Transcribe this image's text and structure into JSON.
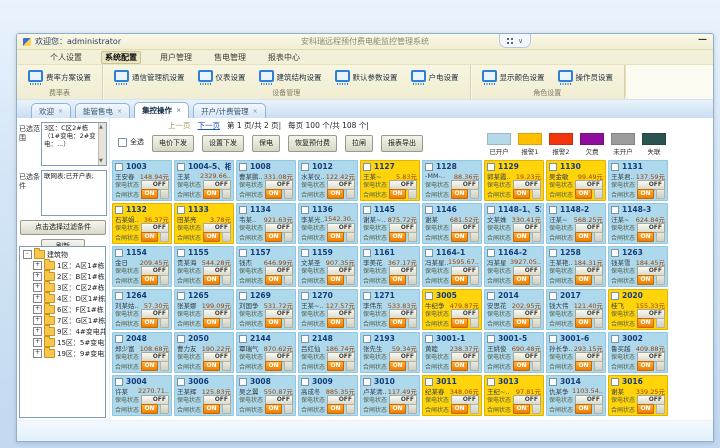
{
  "window": {
    "welcome": "欢迎您：administrator",
    "title": "安科瑞远程预付费电能监控管理系统",
    "minimize_glyph": "—",
    "widget_chevron": "∨"
  },
  "menu": {
    "items": [
      {
        "label": "个人设置",
        "active": false
      },
      {
        "label": "系统配置",
        "active": true
      },
      {
        "label": "用户管理",
        "active": false
      },
      {
        "label": "售电管理",
        "active": false
      },
      {
        "label": "报表中心",
        "active": false
      }
    ]
  },
  "ribbon": {
    "groups": [
      {
        "caption": "费率表",
        "buttons": [
          "费率方案设置"
        ]
      },
      {
        "caption": "设备管理",
        "buttons": [
          "通信管理机设置",
          "仪表设置",
          "建筑结构设置",
          "默认参数设置",
          "户电设置"
        ]
      },
      {
        "caption": "角色设置",
        "buttons": [
          "显示颜色设置",
          "操作员设置"
        ]
      }
    ]
  },
  "tabs": {
    "close_glyph": "×",
    "items": [
      {
        "label": "欢迎",
        "active": false
      },
      {
        "label": "能管售电",
        "active": false
      },
      {
        "label": "集控操作",
        "active": true
      },
      {
        "label": "开户/计费管理",
        "active": false
      }
    ]
  },
  "sidebar": {
    "range_label": "已选范围",
    "range_value": "3区：C区2#栋（1#变电：2#变电：...）",
    "cond_label": "已选条件",
    "cond_value": "联网表;已开户表;",
    "filter_button": "点击选择过滤条件",
    "refresh_button": "刷新",
    "tree": {
      "root": "建筑物",
      "root_glyph": "-",
      "expand_glyph": "+",
      "items": [
        "1区：A区1#栋",
        "2区：B区1#栋(B区1#…",
        "3区：C区2#栋（1#变…",
        "4区：D区1#栋（D区1…",
        "6区：F区1#栋（F区1#…",
        "7区：G区1#栋",
        "9区：4#变电井（4#变…",
        "15区：5#变电站（3#变…",
        "19区：9#变电站（2#…"
      ]
    }
  },
  "toolbar": {
    "select_all": "全选",
    "pager": {
      "prev": "上一页",
      "next": "下一页",
      "page_info": "第 1 页/共 2 页|",
      "count_info": "每页 100 个/共 108 个|"
    },
    "buttons": [
      "电价下发",
      "设置下发",
      "保电",
      "恢复预付费",
      "拉闸",
      "报表导出"
    ],
    "legend": [
      {
        "label": "已开户",
        "color": "#b5d9e8"
      },
      {
        "label": "报警1",
        "color": "#ffc000"
      },
      {
        "label": "报警2",
        "color": "#f1350c"
      },
      {
        "label": "欠费",
        "color": "#8f0d9c"
      },
      {
        "label": "未开户",
        "color": "#9b9b9b"
      },
      {
        "label": "失联",
        "color": "#2b5450"
      }
    ]
  },
  "grid": {
    "status1_label": "保电状态",
    "status1_value": "OFF",
    "status2_label": "合闸状态",
    "status2_value": "ON",
    "cards": [
      {
        "room": "1003",
        "name": "王安春",
        "bal": "148.94元",
        "state": "ok"
      },
      {
        "room": "1004-5、相一",
        "name": "王某",
        "bal": "2329.66..",
        "state": "ok"
      },
      {
        "room": "1008",
        "name": "曹某鹏..",
        "bal": "331.08元",
        "state": "ok"
      },
      {
        "room": "1012",
        "name": "水某仪..",
        "bal": "122.42元",
        "state": "ok"
      },
      {
        "room": "1127",
        "name": "王某~",
        "bal": "5.83元",
        "state": "warn"
      },
      {
        "room": "1128",
        "name": "-MM-..",
        "bal": "88.36元",
        "state": "ok"
      },
      {
        "room": "1129",
        "name": "郭某霞..",
        "bal": "19.23元",
        "state": "warn"
      },
      {
        "room": "1130",
        "name": "吴金敏",
        "bal": "99.49元",
        "state": "warn"
      },
      {
        "room": "1131",
        "name": "王某君..",
        "bal": "137.59元",
        "state": "ok"
      },
      {
        "room": "1132",
        "name": "石某娟..",
        "bal": "36.37元",
        "state": "warn"
      },
      {
        "room": "1133",
        "name": "田某亮",
        "bal": "3.78元",
        "state": "warn"
      },
      {
        "room": "1134",
        "name": "韦某..",
        "bal": "921.63元",
        "state": "ok"
      },
      {
        "room": "1136",
        "name": "李某光..",
        "bal": "1542.30..",
        "state": "ok"
      },
      {
        "room": "1145",
        "name": "谢某~..",
        "bal": "875.72元",
        "state": "ok"
      },
      {
        "room": "1146",
        "name": "谢某",
        "bal": "681.52元",
        "state": "ok"
      },
      {
        "room": "1148-1、522",
        "name": "文某姝",
        "bal": "330.41元",
        "state": "ok"
      },
      {
        "room": "1148-2",
        "name": "汪某~",
        "bal": "568.25元",
        "state": "ok"
      },
      {
        "room": "1148-3",
        "name": "汪某~",
        "bal": "624.84元",
        "state": "ok"
      },
      {
        "room": "1154",
        "name": "金日",
        "bal": "209.45元",
        "state": "ok"
      },
      {
        "room": "1155",
        "name": "贵某海",
        "bal": "544.28元",
        "state": "ok"
      },
      {
        "room": "1157",
        "name": "钱杰",
        "bal": "646.99元",
        "state": "ok"
      },
      {
        "room": "1159",
        "name": "文某圣",
        "bal": "907.35元",
        "state": "ok"
      },
      {
        "room": "1161",
        "name": "李美花",
        "bal": "367.17元",
        "state": "ok"
      },
      {
        "room": "1164-1",
        "name": "冯某星..",
        "bal": "1595.67..",
        "state": "ok"
      },
      {
        "room": "1164-2",
        "name": "冯某星",
        "bal": "3927.05..",
        "state": "ok"
      },
      {
        "room": "1258",
        "name": "王某艳..",
        "bal": "184.31元",
        "state": "ok"
      },
      {
        "room": "1263",
        "name": "钱某雪",
        "bal": "184.45元",
        "state": "ok"
      },
      {
        "room": "1264",
        "name": "刘某姑..",
        "bal": "57.30元",
        "state": "ok"
      },
      {
        "room": "1265",
        "name": "张某娜",
        "bal": "199.09元",
        "state": "ok"
      },
      {
        "room": "1269",
        "name": "刘国争",
        "bal": "531.72元",
        "state": "ok"
      },
      {
        "room": "1270",
        "name": "王某~..",
        "bal": "127.57元",
        "state": "ok"
      },
      {
        "room": "1271",
        "name": "李伟东",
        "bal": "533.83元",
        "state": "ok"
      },
      {
        "room": "3005",
        "name": "牛纪争",
        "bal": "479.87元",
        "state": "warn"
      },
      {
        "room": "2014",
        "name": "安思花",
        "bal": "202.95元",
        "state": "ok"
      },
      {
        "room": "2017",
        "name": "钱大伟",
        "bal": "121.40元",
        "state": "ok"
      },
      {
        "room": "2020",
        "name": "桂飞",
        "bal": "155.33元",
        "state": "warn"
      },
      {
        "room": "2048",
        "name": "郑少富",
        "bal": "108.68元",
        "state": "ok"
      },
      {
        "room": "2050",
        "name": "曹力友",
        "bal": "190.22元",
        "state": "ok"
      },
      {
        "room": "2144",
        "name": "覃瑞气",
        "bal": "870.62元",
        "state": "ok"
      },
      {
        "room": "2148",
        "name": "吕红仙",
        "bal": "186.74元",
        "state": "ok"
      },
      {
        "room": "2193",
        "name": "张先生",
        "bal": "59.34元",
        "state": "ok"
      },
      {
        "room": "3001-1",
        "name": "黄睦",
        "bal": "238.37元",
        "state": "ok"
      },
      {
        "room": "3001-5",
        "name": "王姚俊",
        "bal": "690.48元",
        "state": "ok"
      },
      {
        "room": "3001-6",
        "name": "孙长争..",
        "bal": "293.15元",
        "state": "ok"
      },
      {
        "room": "3002",
        "name": "鲁买越",
        "bal": "409.88元",
        "state": "ok"
      },
      {
        "room": "3004",
        "name": "许某",
        "bal": "2270.71..",
        "state": "ok"
      },
      {
        "room": "3006",
        "name": "王某辉",
        "bal": "125.83元",
        "state": "ok"
      },
      {
        "room": "3008",
        "name": "吴之翼",
        "bal": "550.87元",
        "state": "ok"
      },
      {
        "room": "3009",
        "name": "高成冬",
        "bal": "885.35元",
        "state": "ok"
      },
      {
        "room": "3010",
        "name": "卢某清..",
        "bal": "117.49元",
        "state": "ok"
      },
      {
        "room": "3011",
        "name": "纪某春",
        "bal": "348.06元",
        "state": "warn"
      },
      {
        "room": "3013",
        "name": "王纪~..",
        "bal": "97.81元",
        "state": "warn"
      },
      {
        "room": "3014",
        "name": "仇某争",
        "bal": "1103.54..",
        "state": "ok"
      },
      {
        "room": "3016",
        "name": "谢某",
        "bal": "339.25元",
        "state": "warn"
      }
    ]
  }
}
